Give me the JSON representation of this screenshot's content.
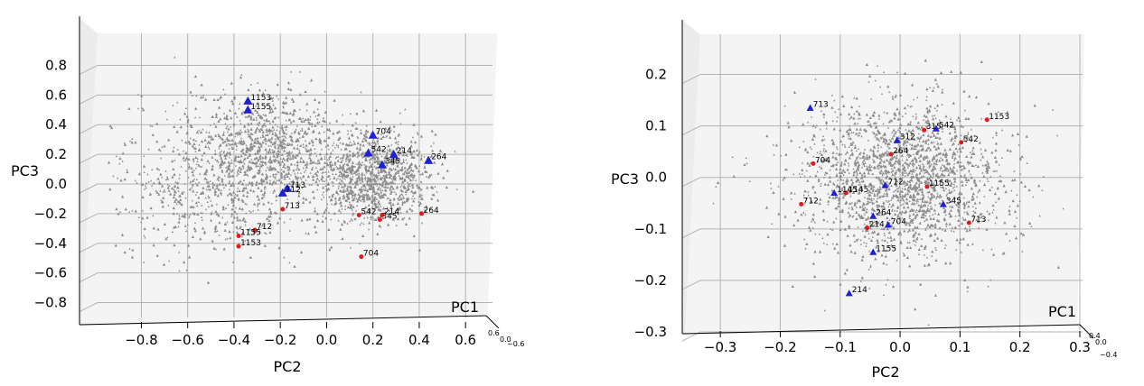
{
  "chart_data": [
    {
      "type": "scatter",
      "title": "",
      "xlabel": "PC2",
      "ylabel": "PC3",
      "zlabel": "PC1",
      "xlim": [
        -0.95,
        0.65
      ],
      "ylim": [
        -0.9,
        0.9
      ],
      "xticks": [
        "−0.8",
        "−0.6",
        "−0.4",
        "−0.2",
        "0.0",
        "0.2",
        "0.4",
        "0.6"
      ],
      "xtick_values": [
        -0.8,
        -0.6,
        -0.4,
        -0.2,
        0.0,
        0.2,
        0.4,
        0.6
      ],
      "yticks": [
        "0.8",
        "0.6",
        "0.4",
        "0.2",
        "0.0",
        "−0.2",
        "−0.4",
        "−0.6",
        "−0.8"
      ],
      "ytick_values": [
        0.8,
        0.6,
        0.4,
        0.2,
        0.0,
        -0.2,
        -0.4,
        -0.6,
        -0.8
      ],
      "ztick_labels": [
        "0.6",
        "0.0",
        "−0.6"
      ],
      "grid": true,
      "colors": {
        "background": "#gray",
        "blue": "#1f1fd6",
        "red": "#e31a1c",
        "gray": "#8c8c8c"
      },
      "blue_points": [
        {
          "label": "1153",
          "x": -0.34,
          "y": 0.56
        },
        {
          "label": "1155",
          "x": -0.34,
          "y": 0.5
        },
        {
          "label": "704",
          "x": 0.2,
          "y": 0.33
        },
        {
          "label": "542",
          "x": 0.18,
          "y": 0.21
        },
        {
          "label": "214",
          "x": 0.29,
          "y": 0.2
        },
        {
          "label": "345",
          "x": 0.24,
          "y": 0.13
        },
        {
          "label": "264",
          "x": 0.44,
          "y": 0.16
        },
        {
          "label": "713",
          "x": -0.17,
          "y": -0.03
        },
        {
          "label": "712",
          "x": -0.19,
          "y": -0.06
        }
      ],
      "red_points": [
        {
          "label": "713",
          "x": -0.19,
          "y": -0.17
        },
        {
          "label": "712",
          "x": -0.31,
          "y": -0.31
        },
        {
          "label": "1155",
          "x": -0.38,
          "y": -0.35
        },
        {
          "label": "1153",
          "x": -0.38,
          "y": -0.42
        },
        {
          "label": "542",
          "x": 0.14,
          "y": -0.21
        },
        {
          "label": "214",
          "x": 0.24,
          "y": -0.21
        },
        {
          "label": "345",
          "x": 0.23,
          "y": -0.24
        },
        {
          "label": "264",
          "x": 0.41,
          "y": -0.2
        },
        {
          "label": "704",
          "x": 0.15,
          "y": -0.49
        }
      ]
    },
    {
      "type": "scatter",
      "title": "",
      "xlabel": "PC2",
      "ylabel": "PC3",
      "zlabel": "PC1",
      "xlim": [
        -0.35,
        0.3
      ],
      "ylim": [
        -0.3,
        0.25
      ],
      "xticks": [
        "−0.3",
        "−0.2",
        "−0.1",
        "0.0",
        "0.1",
        "0.2",
        "0.3"
      ],
      "xtick_values": [
        -0.3,
        -0.2,
        -0.1,
        0.0,
        0.1,
        0.2,
        0.3
      ],
      "yticks": [
        "0.2",
        "0.1",
        "0.0",
        "−0.1",
        "−0.2",
        "−0.3"
      ],
      "ytick_values": [
        0.2,
        0.1,
        0.0,
        -0.1,
        -0.2,
        -0.3
      ],
      "ztick_labels": [
        "0.4",
        "0.0",
        "−0.4"
      ],
      "grid": true,
      "colors": {
        "blue": "#1f1fd6",
        "red": "#e31a1c",
        "gray": "#8c8c8c"
      },
      "blue_points": [
        {
          "label": "713",
          "x": -0.15,
          "y": 0.135
        },
        {
          "label": "542",
          "x": 0.06,
          "y": 0.095
        },
        {
          "label": "312",
          "x": -0.005,
          "y": 0.072
        },
        {
          "label": "712",
          "x": -0.025,
          "y": -0.015
        },
        {
          "label": "1145",
          "x": -0.11,
          "y": -0.03
        },
        {
          "label": "345",
          "x": 0.072,
          "y": -0.052
        },
        {
          "label": "264",
          "x": -0.045,
          "y": -0.075
        },
        {
          "label": "704",
          "x": -0.02,
          "y": -0.092
        },
        {
          "label": "1155",
          "x": -0.045,
          "y": -0.145
        },
        {
          "label": "214",
          "x": -0.085,
          "y": -0.225
        }
      ],
      "red_points": [
        {
          "label": "1153",
          "x": 0.145,
          "y": 0.112
        },
        {
          "label": "315",
          "x": 0.04,
          "y": 0.092
        },
        {
          "label": "542",
          "x": 0.102,
          "y": 0.068
        },
        {
          "label": "264",
          "x": -0.015,
          "y": 0.045
        },
        {
          "label": "704",
          "x": -0.145,
          "y": 0.027
        },
        {
          "label": "1155",
          "x": 0.045,
          "y": -0.018
        },
        {
          "label": "1145",
          "x": -0.09,
          "y": -0.03
        },
        {
          "label": "712",
          "x": -0.165,
          "y": -0.052
        },
        {
          "label": "214",
          "x": -0.055,
          "y": -0.098
        },
        {
          "label": "713",
          "x": 0.115,
          "y": -0.088
        }
      ]
    }
  ]
}
